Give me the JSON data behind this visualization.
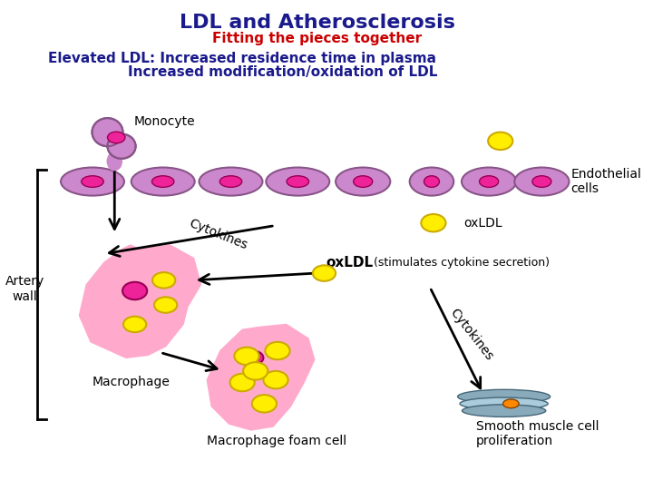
{
  "title": "LDL and Atherosclerosis",
  "subtitle": "Fitting the pieces together",
  "line1": "Elevated LDL: Increased residence time in plasma",
  "line2": "Increased modification/oxidation of LDL",
  "title_color": "#1a1a8c",
  "subtitle_color": "#cc0000",
  "body_text_color": "#1a1a8c",
  "bg_color": "#FFFFFF",
  "purple_cell": "#cc88cc",
  "purple_border": "#885588",
  "pink_nucleus": "#ee2299",
  "yellow_ldl": "#ffee00",
  "yellow_border": "#ccaa00",
  "pink_macro": "#ffaacc",
  "pink_macro_border": "#cc77aa",
  "smooth_cell_color": "#88aabb",
  "smooth_cell_border": "#446677",
  "orange_nucleus": "#ff8800"
}
